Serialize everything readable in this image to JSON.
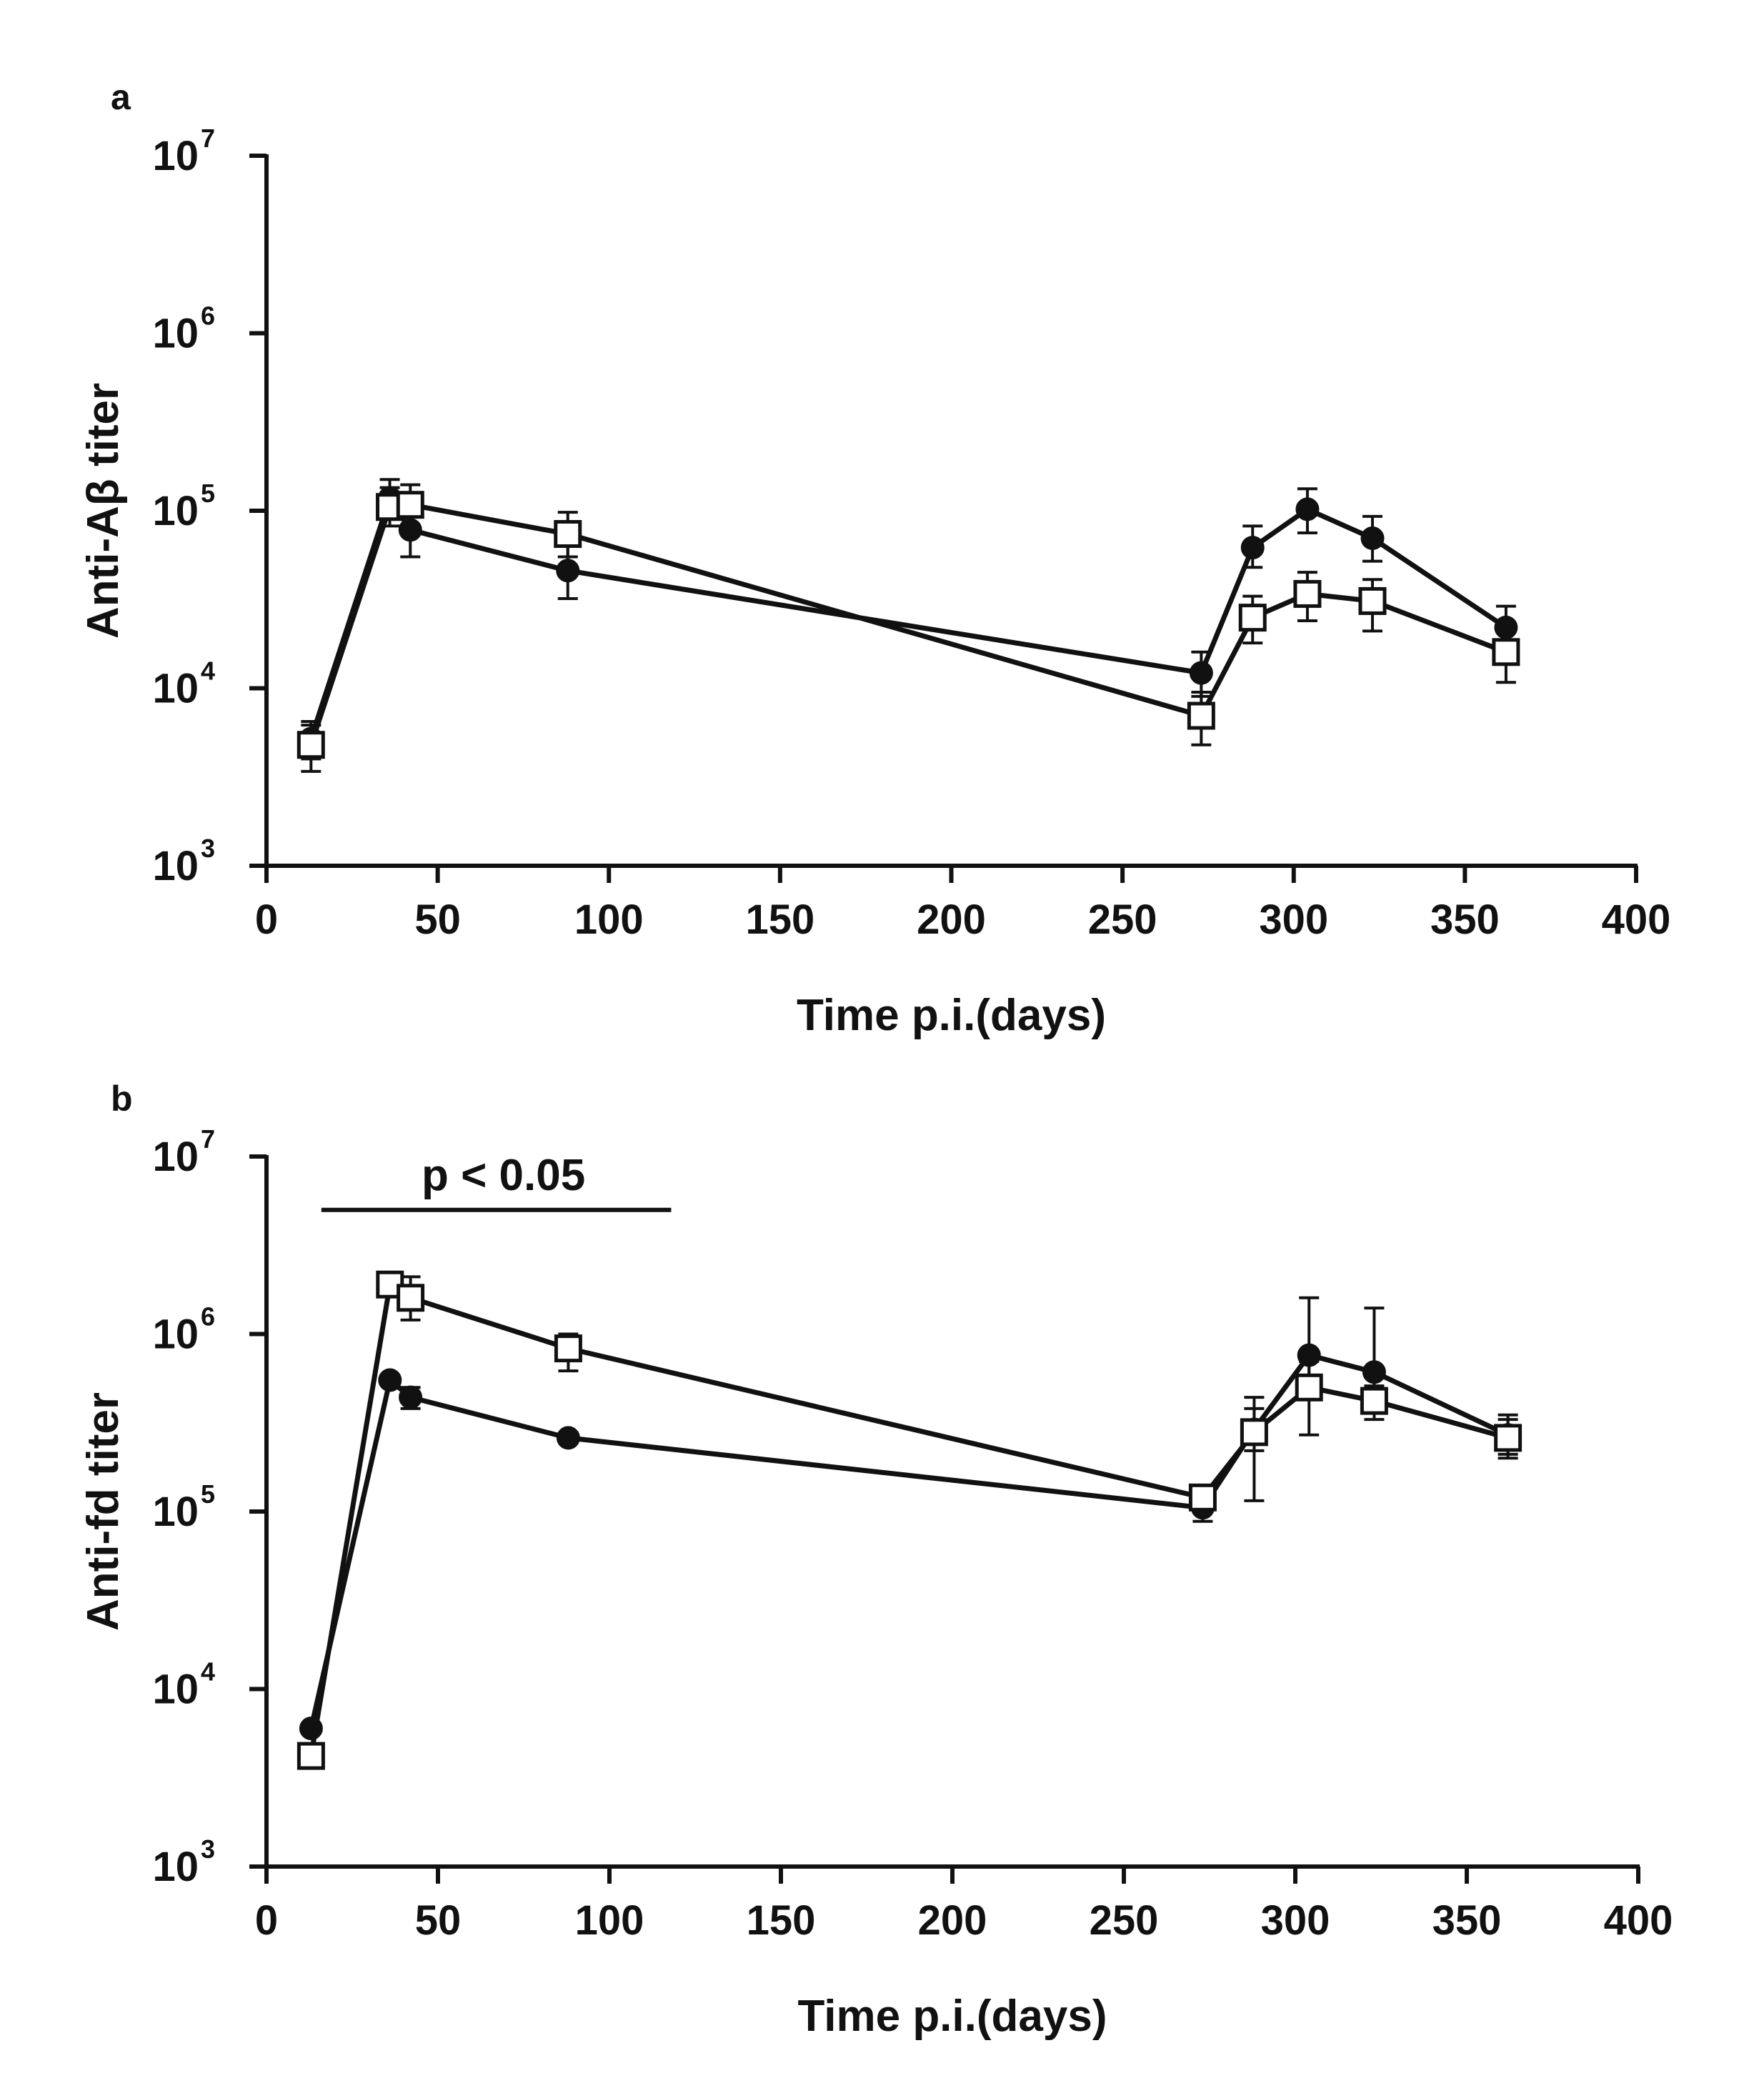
{
  "chart_data": [
    {
      "type": "line",
      "panel_label": "a",
      "title": "",
      "xlabel": "Time p.i.(days)",
      "ylabel": "Anti-Aβ titer",
      "xlim": [
        0,
        400
      ],
      "ylim": [
        1000,
        10000000
      ],
      "yscale": "log",
      "x_ticks": [
        {
          "value": 0,
          "label": "0"
        },
        {
          "value": 50,
          "label": "50"
        },
        {
          "value": 100,
          "label": "100"
        },
        {
          "value": 150,
          "label": "150"
        },
        {
          "value": 200,
          "label": "200"
        },
        {
          "value": 250,
          "label": "250"
        },
        {
          "value": 300,
          "label": "300"
        },
        {
          "value": 350,
          "label": "350"
        },
        {
          "value": 400,
          "label": "400"
        }
      ],
      "y_ticks": [
        {
          "value": 1000,
          "base": "10",
          "exp": "3"
        },
        {
          "value": 10000,
          "base": "10",
          "exp": "4"
        },
        {
          "value": 100000,
          "base": "10",
          "exp": "5"
        },
        {
          "value": 1000000,
          "base": "10",
          "exp": "6"
        },
        {
          "value": 10000000,
          "base": "10",
          "exp": "7"
        }
      ],
      "grid": false,
      "annotations": [],
      "series": [
        {
          "name": "filled circles",
          "marker": "circle",
          "fill": "#111111",
          "x": [
            13,
            36,
            42,
            88,
            273,
            288,
            304,
            323,
            362
          ],
          "y": [
            5200,
            118000,
            78000,
            46000,
            12200,
            62000,
            102000,
            70000,
            22000
          ],
          "err_low": [
            4000,
            90000,
            55000,
            32000,
            9000,
            48000,
            75000,
            52000,
            16500
          ],
          "err_high": [
            6500,
            150000,
            105000,
            64000,
            16000,
            82000,
            133000,
            93000,
            29000
          ]
        },
        {
          "name": "open squares",
          "marker": "square",
          "fill": "#ffffff",
          "x": [
            13,
            36,
            42,
            88,
            273,
            288,
            304,
            323,
            362
          ],
          "y": [
            4800,
            105000,
            108000,
            74000,
            7000,
            25000,
            34000,
            31000,
            16000
          ],
          "err_low": [
            3400,
            82000,
            80000,
            55000,
            4800,
            18000,
            24000,
            21000,
            10800
          ],
          "err_high": [
            6200,
            135000,
            140000,
            98000,
            9500,
            33000,
            45000,
            41000,
            22000
          ]
        }
      ]
    },
    {
      "type": "line",
      "panel_label": "b",
      "title": "",
      "xlabel": "Time p.i.(days)",
      "ylabel": "Anti-fd titer",
      "xlim": [
        0,
        400
      ],
      "ylim": [
        1000,
        10000000
      ],
      "yscale": "log",
      "x_ticks": [
        {
          "value": 0,
          "label": "0"
        },
        {
          "value": 50,
          "label": "50"
        },
        {
          "value": 100,
          "label": "100"
        },
        {
          "value": 150,
          "label": "150"
        },
        {
          "value": 200,
          "label": "200"
        },
        {
          "value": 250,
          "label": "250"
        },
        {
          "value": 300,
          "label": "300"
        },
        {
          "value": 350,
          "label": "350"
        },
        {
          "value": 400,
          "label": "400"
        }
      ],
      "y_ticks": [
        {
          "value": 1000,
          "base": "10",
          "exp": "3"
        },
        {
          "value": 10000,
          "base": "10",
          "exp": "4"
        },
        {
          "value": 100000,
          "base": "10",
          "exp": "5"
        },
        {
          "value": 1000000,
          "base": "10",
          "exp": "6"
        },
        {
          "value": 10000000,
          "base": "10",
          "exp": "7"
        }
      ],
      "grid": false,
      "annotations": [
        {
          "text": "p < 0.05",
          "bar_from_x": 16,
          "bar_to_x": 118,
          "bar_y": 5000000
        }
      ],
      "series": [
        {
          "name": "filled circles",
          "marker": "circle",
          "fill": "#111111",
          "x": [
            13,
            36,
            42,
            88,
            273,
            288,
            304,
            323,
            362
          ],
          "y": [
            6000,
            550000,
            440000,
            260000,
            105000,
            290000,
            760000,
            610000,
            270000
          ],
          "err_low": [
            6000,
            520000,
            380000,
            250000,
            88000,
            220000,
            520000,
            420000,
            210000
          ],
          "err_high": [
            6000,
            580000,
            500000,
            270000,
            120000,
            380000,
            1600000,
            1400000,
            350000
          ]
        },
        {
          "name": "open squares",
          "marker": "square",
          "fill": "#ffffff",
          "x": [
            13,
            36,
            42,
            88,
            273,
            288,
            304,
            323,
            362
          ],
          "y": [
            4200,
            1900000,
            1600000,
            830000,
            120000,
            280000,
            500000,
            420000,
            260000
          ],
          "err_low": [
            4200,
            1800000,
            1200000,
            620000,
            110000,
            115000,
            270000,
            330000,
            200000
          ],
          "err_high": [
            4200,
            2000000,
            2100000,
            1000000,
            130000,
            440000,
            700000,
            510000,
            330000
          ]
        }
      ]
    }
  ]
}
